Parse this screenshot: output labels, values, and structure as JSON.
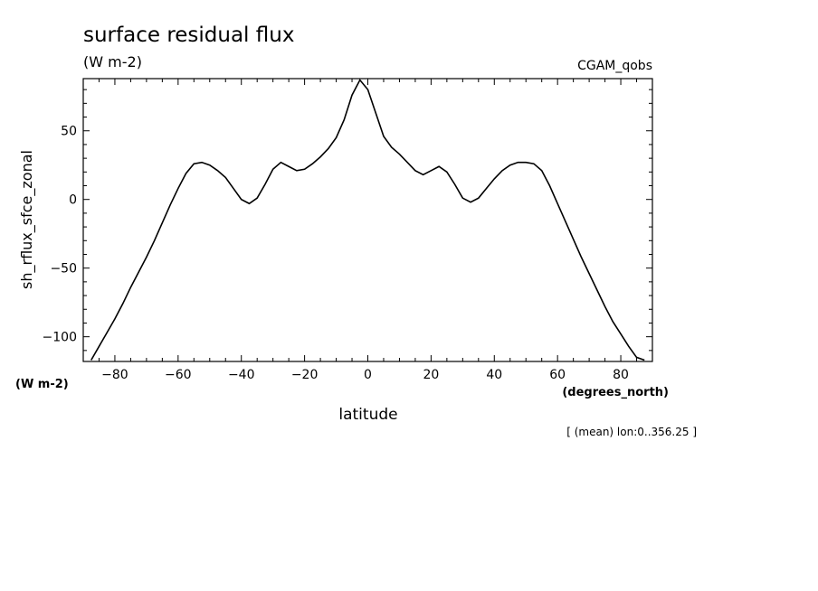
{
  "chart_data": {
    "type": "line",
    "title": "surface residual flux",
    "subtitle": "(W m-2)",
    "dataset_label": "CGAM_qobs",
    "xlabel": "latitude",
    "xunits": "(degrees_north)",
    "ylabel": "sh_rflux_sfce_zonal",
    "yunits": "(W m-2)",
    "footnote": "[ (mean) lon:0..356.25 ]",
    "xlim": [
      -90,
      90
    ],
    "ylim": [
      -118,
      88
    ],
    "xticks": [
      -80,
      -60,
      -40,
      -20,
      0,
      20,
      40,
      60,
      80
    ],
    "yticks": [
      -100,
      -50,
      0,
      50
    ],
    "grid": false,
    "series": [
      {
        "x": [
          -87.5,
          -85,
          -82.5,
          -80,
          -77.5,
          -75,
          -72.5,
          -70,
          -67.5,
          -65,
          -62.5,
          -60,
          -57.5,
          -55,
          -52.5,
          -50,
          -47.5,
          -45,
          -42.5,
          -40,
          -37.5,
          -35,
          -32.5,
          -30,
          -27.5,
          -25,
          -22.5,
          -20,
          -17.5,
          -15,
          -12.5,
          -10,
          -7.5,
          -5,
          -2.5,
          0,
          2.5,
          5,
          7.5,
          10,
          12.5,
          15,
          17.5,
          20,
          22.5,
          25,
          27.5,
          30,
          32.5,
          35,
          37.5,
          40,
          42.5,
          45,
          47.5,
          50,
          52.5,
          55,
          57.5,
          60,
          62.5,
          65,
          67.5,
          70,
          72.5,
          75,
          77.5,
          80,
          82.5,
          85,
          87.5
        ],
        "y": [
          -117,
          -107,
          -97,
          -87,
          -76,
          -64,
          -53,
          -42,
          -30,
          -17,
          -4,
          8,
          19,
          26,
          27,
          25,
          21,
          16,
          8,
          0,
          -3,
          1,
          11,
          22,
          27,
          24,
          21,
          22,
          26,
          31,
          37,
          45,
          58,
          76,
          87,
          80,
          63,
          46,
          38,
          33,
          27,
          21,
          18,
          21,
          24,
          20,
          11,
          1,
          -2,
          1,
          8,
          15,
          21,
          25,
          27,
          27,
          26,
          21,
          10,
          -3,
          -16,
          -29,
          -42,
          -54,
          -66,
          -78,
          -89,
          -98,
          -107,
          -115,
          -117
        ]
      }
    ]
  }
}
